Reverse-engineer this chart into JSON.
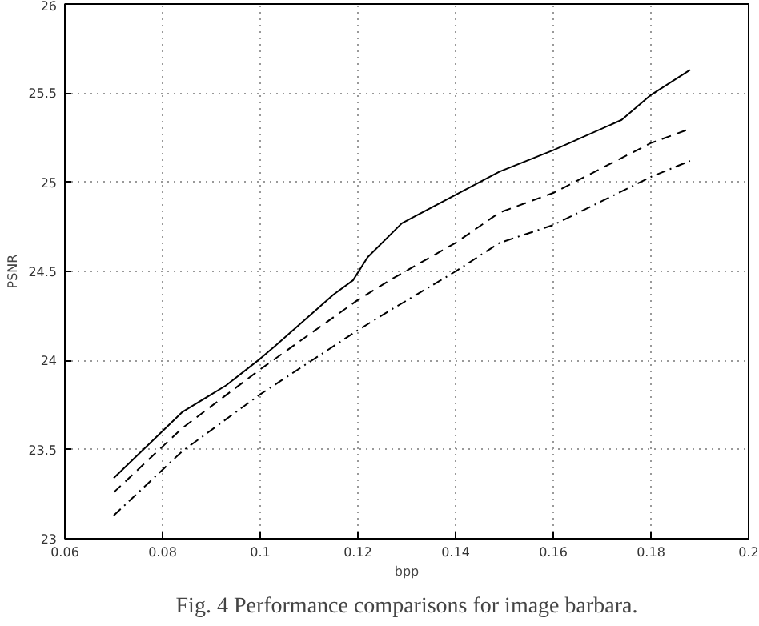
{
  "chart_data": {
    "type": "line",
    "xlabel": "bpp",
    "ylabel": "PSNR",
    "xlim": [
      0.06,
      0.2
    ],
    "xticks": [
      0.06,
      0.08,
      0.1,
      0.12,
      0.14,
      0.16,
      0.18,
      0.2
    ],
    "ylim": [
      23,
      26
    ],
    "yticks": [
      23,
      23.5,
      24,
      24.5,
      25,
      25.5,
      26
    ],
    "grid": true,
    "annotations": [
      "Fig. 4 Performance comparisons for image barbara."
    ],
    "series": [
      {
        "color": "#000000",
        "line_style": "solid",
        "x": [
          0.07,
          0.084,
          0.093,
          0.1,
          0.103,
          0.115,
          0.119,
          0.122,
          0.129,
          0.149,
          0.16,
          0.174,
          0.18,
          0.188
        ],
        "values": [
          23.34,
          23.71,
          23.86,
          24.01,
          24.08,
          24.37,
          24.45,
          24.58,
          24.77,
          25.06,
          25.18,
          25.35,
          25.49,
          25.63
        ]
      },
      {
        "color": "#000000",
        "line_style": "dashed",
        "x": [
          0.07,
          0.084,
          0.1,
          0.12,
          0.1265,
          0.14,
          0.149,
          0.16,
          0.18,
          0.188
        ],
        "values": [
          23.26,
          23.62,
          23.95,
          24.34,
          24.45,
          24.66,
          24.83,
          24.94,
          25.22,
          25.3
        ]
      },
      {
        "color": "#000000",
        "line_style": "dashdot",
        "x": [
          0.07,
          0.084,
          0.1,
          0.12,
          0.1265,
          0.14,
          0.149,
          0.16,
          0.18,
          0.188
        ],
        "values": [
          23.13,
          23.49,
          23.81,
          24.17,
          24.28,
          24.5,
          24.66,
          24.76,
          25.03,
          25.12
        ]
      }
    ]
  }
}
